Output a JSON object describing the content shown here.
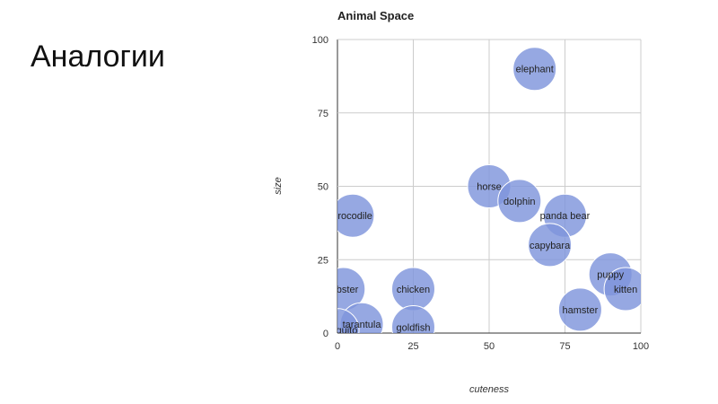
{
  "slide": {
    "title": "Аналогии"
  },
  "chart_data": {
    "type": "scatter",
    "title": "Animal Space",
    "xlabel": "cuteness",
    "ylabel": "size",
    "xlim": [
      0,
      100
    ],
    "ylim": [
      0,
      100
    ],
    "xticks": [
      0,
      25,
      50,
      75,
      100
    ],
    "yticks": [
      0,
      25,
      50,
      75,
      100
    ],
    "grid": true,
    "point_color": "#7f95dc",
    "points": [
      {
        "label": "elephant",
        "x": 65,
        "y": 90
      },
      {
        "label": "horse",
        "x": 50,
        "y": 50
      },
      {
        "label": "dolphin",
        "x": 60,
        "y": 45
      },
      {
        "label": "panda bear",
        "x": 75,
        "y": 40
      },
      {
        "label": "capybara",
        "x": 70,
        "y": 30
      },
      {
        "label": "crocodile",
        "x": 5,
        "y": 40
      },
      {
        "label": "puppy",
        "x": 90,
        "y": 20
      },
      {
        "label": "kitten",
        "x": 95,
        "y": 15
      },
      {
        "label": "hamster",
        "x": 80,
        "y": 8
      },
      {
        "label": "lobster",
        "x": 2,
        "y": 15
      },
      {
        "label": "chicken",
        "x": 25,
        "y": 15
      },
      {
        "label": "tarantula",
        "x": 8,
        "y": 3
      },
      {
        "label": "goldfish",
        "x": 25,
        "y": 2
      },
      {
        "label": "mosquito",
        "x": 0,
        "y": 1
      }
    ]
  }
}
